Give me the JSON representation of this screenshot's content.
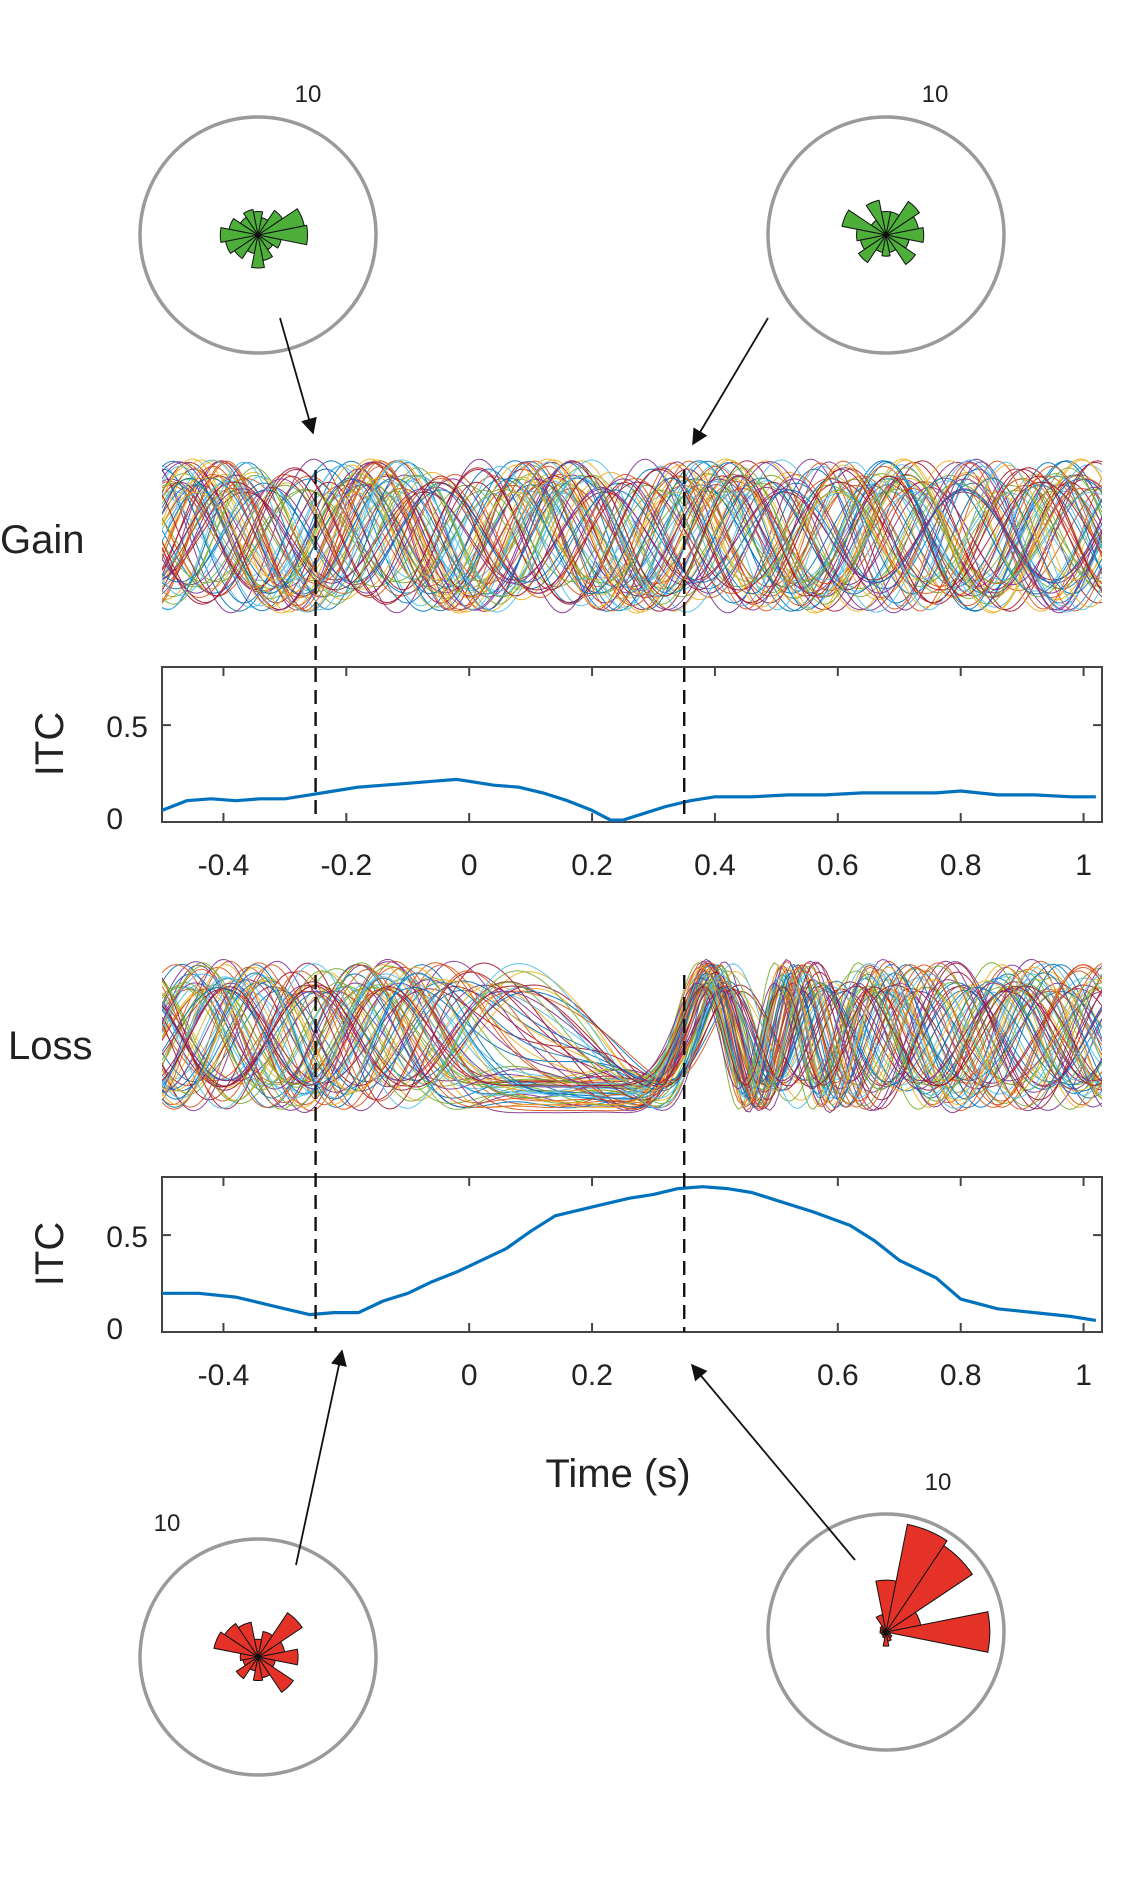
{
  "chart_data": [
    {
      "type": "line",
      "panel": "gain-traces",
      "label": "Gain",
      "x_range": [
        -0.5,
        1.03
      ],
      "trace_count": 70,
      "phase_locking": "weak"
    },
    {
      "type": "line",
      "panel": "gain-itc",
      "ylabel": "ITC",
      "xlim": [
        -0.5,
        1.03
      ],
      "ylim": [
        0,
        0.8
      ],
      "yticks": [
        "0",
        "0.5"
      ],
      "xticks": [
        "-0.4",
        "-0.2",
        "0",
        "0.2",
        "0.4",
        "0.6",
        "0.8",
        "1"
      ],
      "markers": [
        -0.25,
        0.35
      ],
      "series_color": "#0072BD",
      "x": [
        -0.5,
        -0.46,
        -0.42,
        -0.38,
        -0.34,
        -0.3,
        -0.26,
        -0.22,
        -0.18,
        -0.14,
        -0.1,
        -0.06,
        -0.02,
        0.0,
        0.04,
        0.08,
        0.12,
        0.16,
        0.2,
        0.23,
        0.25,
        0.28,
        0.32,
        0.36,
        0.4,
        0.46,
        0.52,
        0.58,
        0.64,
        0.7,
        0.76,
        0.8,
        0.86,
        0.92,
        0.98,
        1.02
      ],
      "y": [
        0.06,
        0.11,
        0.12,
        0.11,
        0.12,
        0.12,
        0.14,
        0.16,
        0.18,
        0.19,
        0.2,
        0.21,
        0.22,
        0.21,
        0.19,
        0.18,
        0.15,
        0.11,
        0.06,
        0.01,
        0.01,
        0.04,
        0.08,
        0.11,
        0.13,
        0.13,
        0.14,
        0.14,
        0.15,
        0.15,
        0.15,
        0.16,
        0.14,
        0.14,
        0.13,
        0.13
      ]
    },
    {
      "type": "line",
      "panel": "loss-traces",
      "label": "Loss",
      "x_range": [
        -0.5,
        1.03
      ],
      "trace_count": 70,
      "phase_locking": "strong"
    },
    {
      "type": "line",
      "panel": "loss-itc",
      "ylabel": "ITC",
      "xlabel": "Time (s)",
      "xlim": [
        -0.5,
        1.03
      ],
      "ylim": [
        0,
        0.8
      ],
      "yticks": [
        "0",
        "0.5"
      ],
      "xticks": [
        "-0.4",
        "0",
        "0.2",
        "0.6",
        "0.8",
        "1"
      ],
      "markers": [
        -0.25,
        0.35
      ],
      "series_color": "#0072BD",
      "x": [
        -0.5,
        -0.44,
        -0.38,
        -0.34,
        -0.3,
        -0.26,
        -0.22,
        -0.18,
        -0.14,
        -0.1,
        -0.06,
        -0.02,
        0.02,
        0.06,
        0.1,
        0.14,
        0.18,
        0.22,
        0.26,
        0.3,
        0.34,
        0.38,
        0.42,
        0.46,
        0.5,
        0.56,
        0.62,
        0.66,
        0.7,
        0.76,
        0.8,
        0.86,
        0.92,
        0.98,
        1.02
      ],
      "y": [
        0.2,
        0.2,
        0.18,
        0.15,
        0.12,
        0.09,
        0.1,
        0.1,
        0.16,
        0.2,
        0.26,
        0.31,
        0.37,
        0.43,
        0.52,
        0.6,
        0.63,
        0.66,
        0.69,
        0.71,
        0.74,
        0.75,
        0.74,
        0.72,
        0.68,
        0.62,
        0.55,
        0.47,
        0.37,
        0.28,
        0.17,
        0.12,
        0.1,
        0.08,
        0.06
      ]
    },
    {
      "type": "rose",
      "panel": "gain-rose-early",
      "radius_label": "10",
      "color": "#4DAF3A",
      "bins_deg": [
        0,
        22.5,
        45,
        67.5,
        90,
        112.5,
        135,
        157.5,
        180,
        202.5,
        225,
        247.5,
        270,
        292.5,
        315,
        337.5
      ],
      "counts": [
        4.2,
        4.0,
        2.5,
        1.5,
        2.0,
        2.2,
        1.8,
        2.5,
        3.2,
        2.8,
        2.4,
        1.6,
        2.8,
        2.2,
        1.5,
        2.0
      ]
    },
    {
      "type": "rose",
      "panel": "gain-rose-late",
      "radius_label": "10",
      "color": "#4DAF3A",
      "bins_deg": [
        0,
        22.5,
        45,
        67.5,
        90,
        112.5,
        135,
        157.5,
        180,
        202.5,
        225,
        247.5,
        270,
        292.5,
        315,
        337.5
      ],
      "counts": [
        3.2,
        2.8,
        3.4,
        2.0,
        2.0,
        3.0,
        1.5,
        3.8,
        2.5,
        2.2,
        2.8,
        1.5,
        1.8,
        1.5,
        3.0,
        2.0
      ]
    },
    {
      "type": "rose",
      "panel": "loss-rose-early",
      "radius_label": "10",
      "color": "#E53228",
      "bins_deg": [
        0,
        22.5,
        45,
        67.5,
        90,
        112.5,
        135,
        157.5,
        180,
        202.5,
        225,
        247.5,
        270,
        292.5,
        315,
        337.5
      ],
      "counts": [
        3.4,
        2.3,
        4.5,
        2.2,
        1.5,
        3.0,
        3.4,
        3.8,
        1.5,
        1.3,
        2.2,
        1.2,
        2.0,
        1.8,
        3.6,
        1.5
      ]
    },
    {
      "type": "rose",
      "panel": "loss-rose-late",
      "radius_label": "10",
      "color": "#E53228",
      "bins_deg": [
        0,
        22.5,
        45,
        67.5,
        90,
        112.5,
        135,
        157.5,
        180,
        202.5,
        225,
        247.5,
        270,
        292.5,
        315,
        337.5
      ],
      "counts": [
        8.8,
        3.0,
        8.8,
        9.3,
        4.4,
        1.5,
        0.6,
        0.5,
        0.5,
        0.4,
        0.4,
        0.5,
        1.2,
        0.8,
        0.6,
        0.4
      ]
    }
  ]
}
